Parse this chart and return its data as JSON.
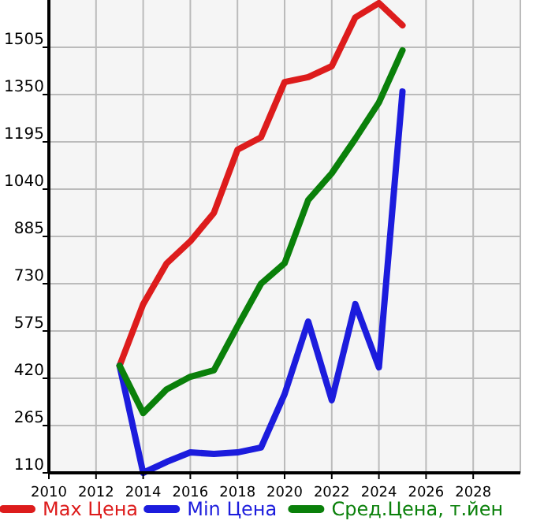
{
  "chart_data": {
    "type": "line",
    "x": [
      2013,
      2014,
      2015,
      2016,
      2017,
      2018,
      2019,
      2020,
      2021,
      2022,
      2023,
      2024,
      2025
    ],
    "series": [
      {
        "name": "Max Цена",
        "color": "#dd1c1c",
        "values": [
          461,
          663,
          797,
          869,
          962,
          1169,
          1210,
          1391,
          1407,
          1443,
          1603,
          1650,
          1577
        ]
      },
      {
        "name": "Min Цена",
        "color": "#1c1cdd",
        "values": [
          461,
          110,
          146,
          177,
          172,
          177,
          193,
          368,
          606,
          348,
          663,
          456,
          1360
        ]
      },
      {
        "name": "Сред.Цена, т.йен",
        "color": "#0a800a",
        "values": [
          461,
          306,
          384,
          425,
          446,
          590,
          730,
          797,
          1004,
          1092,
          1205,
          1324,
          1495
        ]
      }
    ],
    "xlim": [
      2010,
      2030
    ],
    "xticks": [
      2010,
      2012,
      2014,
      2016,
      2018,
      2020,
      2022,
      2024,
      2026,
      2028
    ],
    "ylim": [
      110,
      1660
    ],
    "yticks": [
      110,
      265,
      420,
      575,
      730,
      885,
      1040,
      1195,
      1350,
      1505
    ],
    "grid": true,
    "legend": "bottom",
    "marker": "none",
    "line_style": "solid"
  }
}
